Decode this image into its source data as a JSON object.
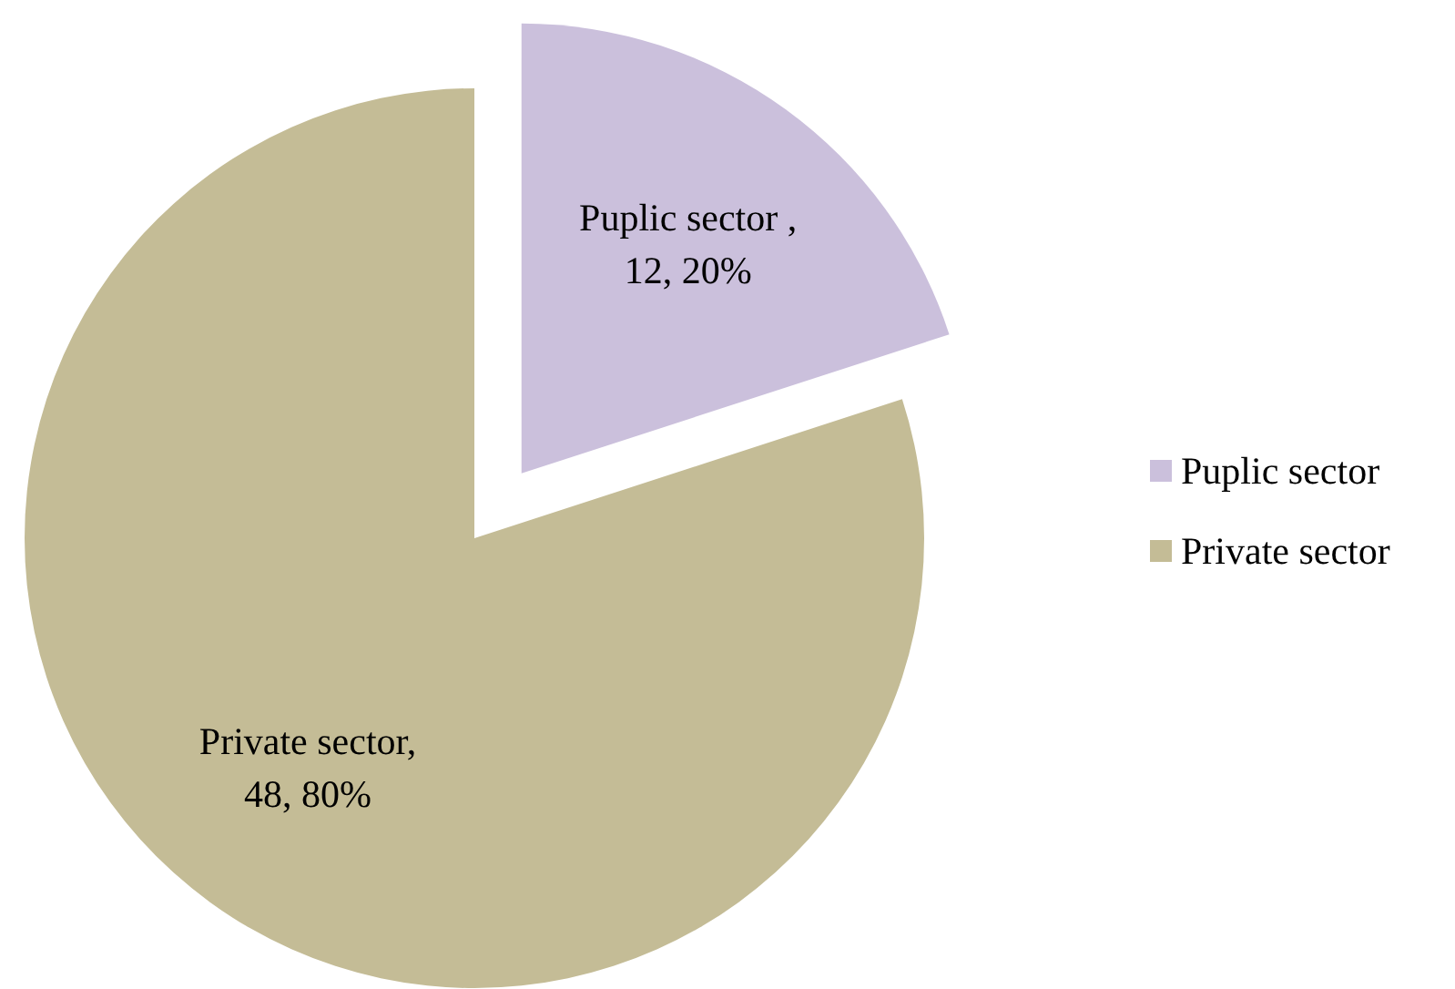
{
  "chart_data": {
    "type": "pie",
    "categories": [
      "Puplic sector",
      "Private sector"
    ],
    "values": [
      12,
      48
    ],
    "colors": [
      "#cbc0dc",
      "#c4bc96"
    ],
    "value_labels": [
      "Puplic sector ,\n12, 20%",
      "Private sector,\n48, 80%"
    ],
    "legend": "right"
  }
}
